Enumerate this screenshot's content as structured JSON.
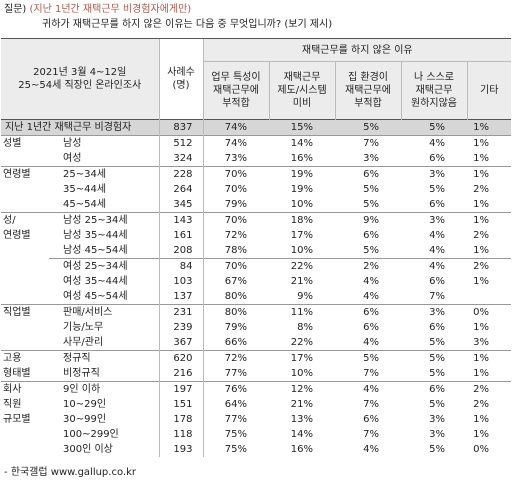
{
  "header": {
    "prefix": "질문)",
    "condition": "(지난 1년간 재택근무 비경험자에게만)",
    "question": "귀하가 재택근무를 하지 않은 이유는 다음 중 무엇입니까? (보기 제시)"
  },
  "table": {
    "survey_lines": [
      "2021년 3월 4~12일",
      "25~54세 직장인 온라인조사"
    ],
    "n_header_lines": [
      "사례수",
      "(명)"
    ],
    "group_header": "재택근무를 하지 않은 이유",
    "columns": [
      [
        "업무 특성이",
        "재택근무에",
        "부적합"
      ],
      [
        "재택근무",
        "제도/시스템",
        "미비"
      ],
      [
        "집 환경이",
        "재택근무에",
        "부적합"
      ],
      [
        "나 스스로",
        "재택근무",
        "원하지않음"
      ],
      [
        "기타"
      ]
    ],
    "total": {
      "label": "지난 1년간 재택근무 비경험자",
      "n": "837",
      "values": [
        "74%",
        "15%",
        "5%",
        "5%",
        "1%"
      ]
    },
    "groups": [
      {
        "label_lines": [
          "성별"
        ],
        "rows": [
          {
            "label": "남성",
            "n": "512",
            "values": [
              "74%",
              "14%",
              "7%",
              "4%",
              "1%"
            ]
          },
          {
            "label": "여성",
            "n": "324",
            "values": [
              "73%",
              "16%",
              "3%",
              "6%",
              "1%"
            ]
          }
        ]
      },
      {
        "label_lines": [
          "연령별"
        ],
        "rows": [
          {
            "label": "25~34세",
            "n": "228",
            "values": [
              "70%",
              "19%",
              "6%",
              "3%",
              "1%"
            ]
          },
          {
            "label": "35~44세",
            "n": "264",
            "values": [
              "70%",
              "19%",
              "5%",
              "5%",
              "2%"
            ]
          },
          {
            "label": "45~54세",
            "n": "345",
            "values": [
              "79%",
              "10%",
              "5%",
              "6%",
              "1%"
            ]
          }
        ]
      },
      {
        "label_lines": [
          "성/",
          "연령별"
        ],
        "rows": [
          {
            "label": "남성 25~34세",
            "n": "143",
            "values": [
              "70%",
              "18%",
              "9%",
              "3%",
              "1%"
            ]
          },
          {
            "label": "남성 35~44세",
            "n": "161",
            "values": [
              "72%",
              "17%",
              "6%",
              "4%",
              "2%"
            ]
          },
          {
            "label": "남성 45~54세",
            "n": "208",
            "values": [
              "78%",
              "10%",
              "5%",
              "4%",
              "1%"
            ]
          }
        ]
      },
      {
        "rows": [
          {
            "label": "여성 25~34세",
            "n": "84",
            "values": [
              "70%",
              "22%",
              "2%",
              "4%",
              "2%"
            ]
          },
          {
            "label": "여성 35~44세",
            "n": "103",
            "values": [
              "67%",
              "21%",
              "4%",
              "6%",
              "1%"
            ]
          },
          {
            "label": "여성 45~54세",
            "n": "137",
            "values": [
              "80%",
              "9%",
              "4%",
              "7%",
              null
            ]
          }
        ]
      },
      {
        "label_lines": [
          "직업별"
        ],
        "rows": [
          {
            "label": "판매/서비스",
            "n": "231",
            "values": [
              "80%",
              "11%",
              "6%",
              "3%",
              "0%"
            ]
          },
          {
            "label": "기능/노무",
            "n": "239",
            "values": [
              "79%",
              "8%",
              "6%",
              "6%",
              "1%"
            ]
          },
          {
            "label": "사무/관리",
            "n": "367",
            "values": [
              "66%",
              "22%",
              "4%",
              "5%",
              "3%"
            ]
          }
        ]
      },
      {
        "label_lines": [
          "고용",
          "형태별"
        ],
        "rows": [
          {
            "label": "정규직",
            "n": "620",
            "values": [
              "72%",
              "17%",
              "5%",
              "5%",
              "1%"
            ]
          },
          {
            "label": "비정규직",
            "n": "216",
            "values": [
              "77%",
              "10%",
              "7%",
              "5%",
              "1%"
            ]
          }
        ]
      },
      {
        "label_lines": [
          "회사",
          "직원",
          "규모별"
        ],
        "rows": [
          {
            "label": "9인 이하",
            "n": "197",
            "values": [
              "76%",
              "12%",
              "4%",
              "6%",
              "2%"
            ]
          },
          {
            "label": "10~29인",
            "n": "151",
            "values": [
              "64%",
              "21%",
              "7%",
              "5%",
              "2%"
            ]
          },
          {
            "label": "30~99인",
            "n": "178",
            "values": [
              "77%",
              "13%",
              "6%",
              "3%",
              "1%"
            ]
          },
          {
            "label": "100~299인",
            "n": "118",
            "values": [
              "75%",
              "14%",
              "7%",
              "3%",
              "1%"
            ]
          },
          {
            "label": "300인 이상",
            "n": "193",
            "values": [
              "75%",
              "16%",
              "4%",
              "5%",
              "0%"
            ]
          }
        ]
      }
    ]
  },
  "footer": "- 한국갤럽 www.gallup.co.kr"
}
